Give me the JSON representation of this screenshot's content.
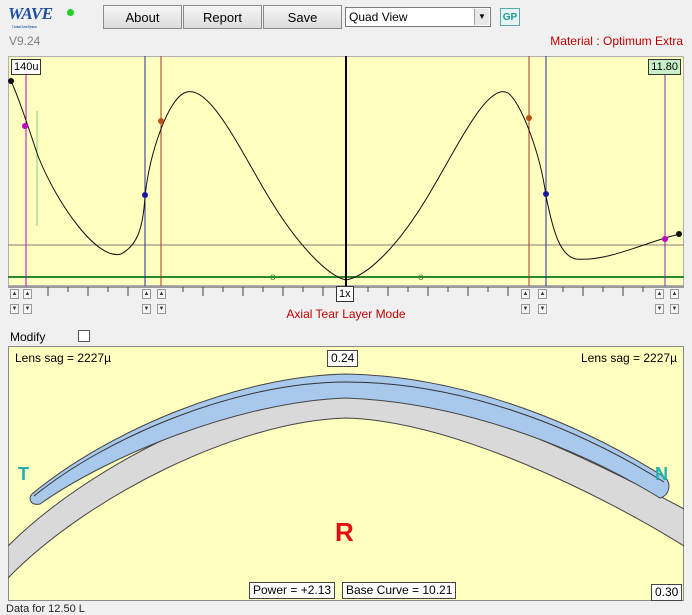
{
  "app": {
    "logo": "WAVE",
    "logo_tagline": "Contact Lens System",
    "version": "V9.24",
    "material": "Material : Optimum Extra"
  },
  "toolbar": {
    "about_label": "About",
    "report_label": "Report",
    "save_label": "Save",
    "view_select_value": "Quad View",
    "gp_label": "GP"
  },
  "top_graph": {
    "left_value": "140u",
    "right_value": "11.80",
    "zoom_label": "1x",
    "o_marker_left": "o",
    "o_marker_right": "o",
    "mode_label": "Axial Tear Layer Mode"
  },
  "modify": {
    "label": "Modify",
    "checked": false
  },
  "lens_view": {
    "sag_left": "Lens sag = 2227µ",
    "sag_right": "Lens sag = 2227µ",
    "center_value": "0.24",
    "left_letter": "T",
    "right_letter": "N",
    "eye_letter": "R",
    "power": "Power = +2.13",
    "base_curve": "Base Curve = 10.21",
    "edge_value": "0.30"
  },
  "footer_text": "Data for 12.50 L",
  "colors": {
    "panel_bg": "#ffffc0",
    "accent_red": "#c00000",
    "teal": "#20b0b0",
    "tear_film": "#a8c8ec",
    "cornea": "#d8d8d8"
  }
}
